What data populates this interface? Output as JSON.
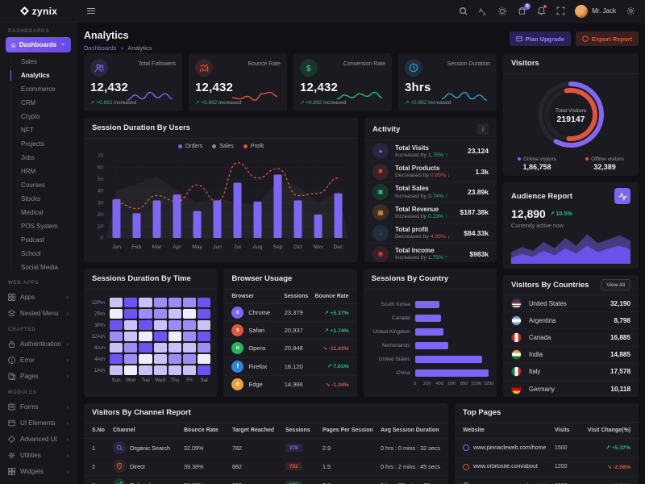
{
  "brand": {
    "name": "zynix"
  },
  "header": {
    "user_name": "Mr. Jack",
    "cart_badge": "5"
  },
  "sidebar": {
    "dashboards_label": "DASHBOARDS",
    "dashboards_button": "Dashboards",
    "dashboard_items": [
      "Sales",
      "Analytics",
      "Ecommerce",
      "CRM",
      "Crypto",
      "NFT",
      "Projects",
      "Jobs",
      "HRM",
      "Courses",
      "Stocks",
      "Medical",
      "POS System",
      "Podcast",
      "School",
      "Social Media"
    ],
    "active_item": "Analytics",
    "webapps_label": "WEB APPS",
    "webapps_items": [
      {
        "label": "Apps",
        "icon": "apps"
      },
      {
        "label": "Nested Menu",
        "icon": "nested-menu"
      }
    ],
    "crafted_label": "CRAFTED",
    "crafted_items": [
      {
        "label": "Authentication",
        "icon": "authentication"
      },
      {
        "label": "Error",
        "icon": "error"
      },
      {
        "label": "Pages",
        "icon": "pages"
      }
    ],
    "modules_label": "MODULES",
    "modules_items": [
      {
        "label": "Forms",
        "icon": "forms"
      },
      {
        "label": "UI Elements",
        "icon": "ui-elements"
      },
      {
        "label": "Advanced UI",
        "icon": "advanced-ui"
      },
      {
        "label": "Utilities",
        "icon": "utilities"
      },
      {
        "label": "Widgets",
        "icon": "widgets"
      }
    ]
  },
  "page": {
    "title": "Analytics",
    "breadcrumb": [
      "Dashboards",
      "Analytics"
    ],
    "plan_upgrade": "Plan Upgrade",
    "export_report": "Export Report"
  },
  "kpis": [
    {
      "label": "Total Followers",
      "value": "12,432",
      "delta": "+0.892",
      "delta_word": "increased",
      "icon": "followers",
      "accent": "#8566f2",
      "spark": [
        3,
        7,
        4,
        9,
        5,
        8,
        4
      ]
    },
    {
      "label": "Bounce Rate",
      "value": "12,432",
      "delta": "+0.892",
      "delta_word": "increased",
      "icon": "bounce",
      "accent": "#e0553d",
      "spark": [
        5,
        4,
        6,
        3,
        8,
        9,
        6
      ]
    },
    {
      "label": "Conversion Rate",
      "value": "12,432",
      "delta": "+0.892",
      "delta_word": "increased",
      "icon": "conversion",
      "accent": "#27c07d",
      "spark": [
        4,
        7,
        5,
        8,
        6,
        9,
        5
      ]
    },
    {
      "label": "Session Duration",
      "value": "3hrs",
      "delta": "+0.892",
      "delta_word": "increased",
      "icon": "duration",
      "accent": "#3b9bd8",
      "spark": [
        4,
        8,
        5,
        9,
        4,
        7,
        3
      ]
    }
  ],
  "session_chart": {
    "title": "Session Duration By Users"
  },
  "activity": {
    "title": "Activity",
    "menu_button": "i",
    "rows": [
      {
        "label": "Total Visits",
        "change": "Increased by",
        "pct": "1.75%",
        "dir": "up",
        "value": "23,124",
        "icon": "visits",
        "accent": "#8566f2"
      },
      {
        "label": "Total Products",
        "change": "Decreased by",
        "pct": "0.85%",
        "dir": "down",
        "value": "1.3k",
        "icon": "products",
        "accent": "#e0553d"
      },
      {
        "label": "Total Sales",
        "change": "Increased by",
        "pct": "3.74%",
        "dir": "up",
        "value": "23.89k",
        "icon": "sales",
        "accent": "#27c07d"
      },
      {
        "label": "Total Revenue",
        "change": "Increased by",
        "pct": "0.23%",
        "dir": "up",
        "value": "$187.38k",
        "icon": "revenue",
        "accent": "#e8a33d"
      },
      {
        "label": "Total profit",
        "change": "Decreased by",
        "pct": "4.95%",
        "dir": "down",
        "value": "$84.33k",
        "icon": "profit",
        "accent": "#3b9bd8"
      },
      {
        "label": "Total Income",
        "change": "Increased by",
        "pct": "1.75%",
        "dir": "up",
        "value": "$983k",
        "icon": "income",
        "accent": "#e0414b"
      }
    ]
  },
  "visitors": {
    "title": "Visitors"
  },
  "audience": {
    "title": "Audience Report",
    "value": "12,890",
    "pct": "10.5%",
    "sub": "Currently active now"
  },
  "heatmap_card": {
    "title": "Sessions Duration By Time"
  },
  "browser_usage": {
    "title": "Browser Usuage",
    "headers": [
      "Browser",
      "Sessions",
      "Bounce Rate"
    ],
    "rows": [
      {
        "name": "Chrome",
        "sessions": "23,379",
        "rate": "+5.37%",
        "dir": "up",
        "color": "#7e66f2"
      },
      {
        "name": "Safari",
        "sessions": "20,937",
        "rate": "+1.74%",
        "dir": "up",
        "color": "#e0553d"
      },
      {
        "name": "Opera",
        "sessions": "20,848",
        "rate": "-11.43%",
        "dir": "down",
        "color": "#27b35b"
      },
      {
        "name": "Firefox",
        "sessions": "18,120",
        "rate": "7.61%",
        "dir": "up",
        "color": "#2f86d6"
      },
      {
        "name": "Edge",
        "sessions": "14,986",
        "rate": "-1.34%",
        "dir": "down",
        "color": "#e8a33d"
      }
    ]
  },
  "country_card": {
    "title": "Sessions By Country"
  },
  "visitors_by_countries": {
    "title": "Visitors By Countries",
    "view_all": "View All",
    "rows": [
      {
        "name": "United States",
        "value": "32,190",
        "flag": "us"
      },
      {
        "name": "Argentina",
        "value": "8,798",
        "flag": "ar"
      },
      {
        "name": "Canada",
        "value": "16,885",
        "flag": "ca"
      },
      {
        "name": "India",
        "value": "14,885",
        "flag": "in"
      },
      {
        "name": "Italy",
        "value": "17,578",
        "flag": "it"
      },
      {
        "name": "Germany",
        "value": "10,118",
        "flag": "de"
      }
    ]
  },
  "channel_report": {
    "title": "Visitors By Channel Report",
    "headers": [
      "S.No",
      "Channel",
      "Bounce Rate",
      "Target Reached",
      "Sessions",
      "Pages Per Session",
      "Avg Session Duration"
    ],
    "rows": [
      {
        "sno": "1",
        "channel": "Organic Search",
        "icon": "search",
        "accent": "#8566f2",
        "bounce": "32.09%",
        "target": "782",
        "sessions": "278",
        "pps": "2.9",
        "avg": "0 hrs : 0 mins : 32 secs"
      },
      {
        "sno": "2",
        "channel": "Direct",
        "icon": "pin",
        "accent": "#e0553d",
        "bounce": "39.38%",
        "target": "882",
        "sessions": "782",
        "pps": "1.5",
        "avg": "0 hrs : 2 mins : 45 secs"
      },
      {
        "sno": "3",
        "channel": "Referral",
        "icon": "share",
        "accent": "#27c07d",
        "bounce": "22.67%",
        "target": "322",
        "sessions": "622",
        "pps": "3.2",
        "avg": "0 hrs : 38 mins : 28 secs"
      }
    ]
  },
  "top_pages": {
    "title": "Top Pages",
    "headers": [
      "Website",
      "Visits",
      "Visit Change(%)"
    ],
    "rows": [
      {
        "site": "www.pinnacleweb.com/home",
        "visits": "1500",
        "change": "+5.37%",
        "dir": "up",
        "good": true,
        "accent": "#8566f2"
      },
      {
        "site": "www.orbitosite.com/about",
        "visits": "1200",
        "change": "-2.08%",
        "dir": "down",
        "good": false,
        "accent": "#e0553d"
      },
      {
        "site": "www.apexpages.com/contact",
        "visits": "1000",
        "change": "+10.00%",
        "dir": "down",
        "good": true,
        "accent": "#27c07d"
      }
    ]
  },
  "chart_data": [
    {
      "id": "session_duration_by_users",
      "type": "bar",
      "title": "Session Duration By Users",
      "categories": [
        "Jan",
        "Feb",
        "Mar",
        "Apr",
        "May",
        "Jun",
        "Jul",
        "Aug",
        "Sep",
        "Oct",
        "Nov",
        "Dec"
      ],
      "ylim": [
        0,
        70
      ],
      "yticks": [
        0,
        10,
        20,
        30,
        40,
        50,
        60,
        70
      ],
      "series": [
        {
          "name": "Orders",
          "type": "bar",
          "color": "#7e66f2",
          "values": [
            33,
            21,
            32,
            37,
            23,
            32,
            47,
            31,
            54,
            32,
            20,
            38
          ]
        },
        {
          "name": "Sales",
          "type": "area",
          "color": "#ffffff",
          "values": [
            40,
            46,
            52,
            40,
            30,
            34,
            30,
            28,
            50,
            44,
            30,
            40
          ]
        },
        {
          "name": "Profit",
          "type": "line",
          "color": "#e0553d",
          "values": [
            30,
            25,
            36,
            31,
            45,
            31,
            64,
            51,
            59,
            36,
            38,
            51
          ]
        }
      ]
    },
    {
      "id": "visitors_donut",
      "type": "pie",
      "center_label": "Total Visitors",
      "center_value": "219147",
      "slices": [
        {
          "label": "Online visitors",
          "display": "1,86,758",
          "value": 186758,
          "color": "#8566f2"
        },
        {
          "label": "Offline visitors",
          "display": "32,389",
          "value": 32389,
          "color": "#e0553d"
        }
      ]
    },
    {
      "id": "audience_report",
      "type": "area",
      "series": [
        {
          "name": "back",
          "color": "#463a82",
          "values": [
            18,
            26,
            20,
            34,
            24,
            40,
            28,
            46,
            32,
            38,
            44,
            36
          ]
        },
        {
          "name": "front",
          "color": "#6a52e8",
          "values": [
            9,
            15,
            11,
            20,
            13,
            24,
            16,
            28,
            18,
            24,
            28,
            22
          ]
        }
      ]
    },
    {
      "id": "sessions_by_time",
      "type": "heatmap",
      "rows": [
        "12Pm",
        "7Pm",
        "3Pm",
        "12Am",
        "8Am",
        "4Am",
        "1Am"
      ],
      "cols": [
        "Sun",
        "Mon",
        "Tue",
        "Wed",
        "Thu",
        "Fri",
        "Sat"
      ],
      "palette": [
        "#efecfd",
        "#cbc0f8",
        "#a08bf4",
        "#6f52f0"
      ],
      "values": [
        [
          1,
          3,
          1,
          2,
          2,
          2,
          3
        ],
        [
          0,
          3,
          2,
          2,
          1,
          0,
          3
        ],
        [
          3,
          1,
          3,
          1,
          2,
          2,
          1
        ],
        [
          2,
          1,
          0,
          3,
          0,
          2,
          3
        ],
        [
          1,
          2,
          3,
          1,
          1,
          1,
          2
        ],
        [
          3,
          2,
          0,
          1,
          2,
          2,
          0
        ],
        [
          1,
          0,
          1,
          1,
          1,
          1,
          3
        ]
      ]
    },
    {
      "id": "sessions_by_country",
      "type": "bar",
      "categories": [
        "South Korea",
        "Canada",
        "United Kingdom",
        "Netherlands",
        "United States",
        "China"
      ],
      "values": [
        400,
        430,
        470,
        540,
        1100,
        1200
      ],
      "xticks": [
        0,
        200,
        400,
        600,
        800,
        1000,
        1200
      ],
      "bar_color": "#7e66f2"
    },
    {
      "id": "kpi_sparklines",
      "type": "line",
      "series": [
        {
          "name": "Total Followers",
          "values": [
            3,
            7,
            4,
            9,
            5,
            8,
            4
          ]
        },
        {
          "name": "Bounce Rate",
          "values": [
            5,
            4,
            6,
            3,
            8,
            9,
            6
          ]
        },
        {
          "name": "Conversion Rate",
          "values": [
            4,
            7,
            5,
            8,
            6,
            9,
            5
          ]
        },
        {
          "name": "Session Duration",
          "values": [
            4,
            8,
            5,
            9,
            4,
            7,
            3
          ]
        }
      ]
    }
  ]
}
